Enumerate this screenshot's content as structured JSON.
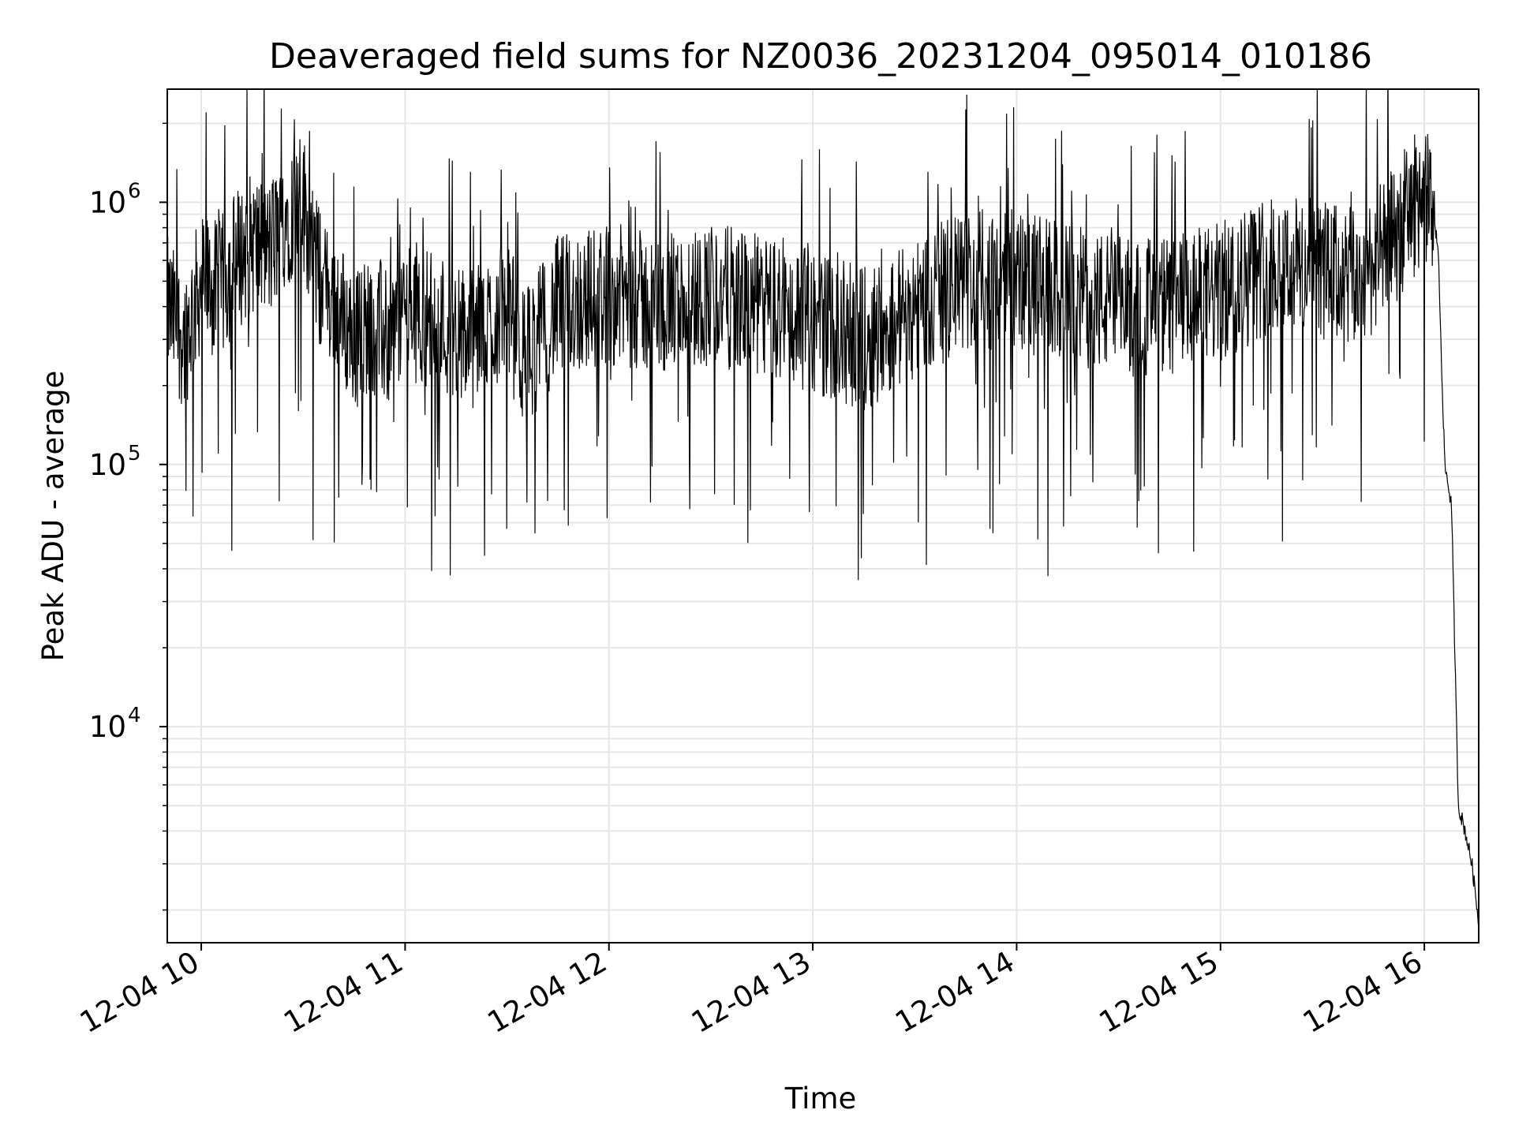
{
  "chart_data": {
    "type": "line",
    "title": "Deaveraged field sums for NZ0036_20231204_095014_010186",
    "xlabel": "Time",
    "ylabel": "Peak ADU - average",
    "yscale": "log",
    "grid": true,
    "xlim": [
      "2023-12-04 09:50:00",
      "2023-12-04 16:16:00"
    ],
    "ylim": [
      1500,
      2700000
    ],
    "x_ticks": [
      "12-04 10",
      "12-04 11",
      "12-04 12",
      "12-04 13",
      "12-04 14",
      "12-04 15",
      "12-04 16"
    ],
    "y_ticks": [
      {
        "base": "10",
        "exp": "4",
        "value": 10000
      },
      {
        "base": "10",
        "exp": "5",
        "value": 100000
      },
      {
        "base": "10",
        "exp": "6",
        "value": 1000000
      }
    ],
    "series": [
      {
        "color": "#000000",
        "note_points": "approximate envelope trace of a noisy signal",
        "x": [
          "2023-12-04 09:50:00",
          "2023-12-04 09:55:00",
          "2023-12-04 10:00:00",
          "2023-12-04 10:05:00",
          "2023-12-04 10:10:00",
          "2023-12-04 10:15:00",
          "2023-12-04 10:20:00",
          "2023-12-04 10:25:00",
          "2023-12-04 10:30:00",
          "2023-12-04 10:35:00",
          "2023-12-04 10:40:00",
          "2023-12-04 10:45:00",
          "2023-12-04 10:50:00",
          "2023-12-04 10:55:00",
          "2023-12-04 11:00:00",
          "2023-12-04 11:10:00",
          "2023-12-04 11:20:00",
          "2023-12-04 11:30:00",
          "2023-12-04 11:35:00",
          "2023-12-04 11:45:00",
          "2023-12-04 12:00:00",
          "2023-12-04 12:15:00",
          "2023-12-04 12:30:00",
          "2023-12-04 12:45:00",
          "2023-12-04 13:00:00",
          "2023-12-04 13:15:00",
          "2023-12-04 13:30:00",
          "2023-12-04 13:45:00",
          "2023-12-04 14:00:00",
          "2023-12-04 14:15:00",
          "2023-12-04 14:30:00",
          "2023-12-04 14:45:00",
          "2023-12-04 15:00:00",
          "2023-12-04 15:15:00",
          "2023-12-04 15:30:00",
          "2023-12-04 15:40:00",
          "2023-12-04 15:50:00",
          "2023-12-04 15:55:00",
          "2023-12-04 16:00:00",
          "2023-12-04 16:02:00",
          "2023-12-04 16:04:00",
          "2023-12-04 16:06:00",
          "2023-12-04 16:08:00",
          "2023-12-04 16:10:00",
          "2023-12-04 16:12:00",
          "2023-12-04 16:14:00",
          "2023-12-04 16:16:00"
        ],
        "y": [
          400000,
          300000,
          500000,
          450000,
          600000,
          700000,
          650000,
          900000,
          1000000,
          500000,
          400000,
          300000,
          350000,
          300000,
          400000,
          350000,
          300000,
          400000,
          250000,
          400000,
          450000,
          400000,
          450000,
          400000,
          350000,
          300000,
          400000,
          500000,
          500000,
          450000,
          400000,
          400000,
          450000,
          600000,
          550000,
          500000,
          700000,
          900000,
          1100000,
          900000,
          700000,
          100000,
          70000,
          5000,
          4000,
          3000,
          1800
        ]
      }
    ]
  }
}
